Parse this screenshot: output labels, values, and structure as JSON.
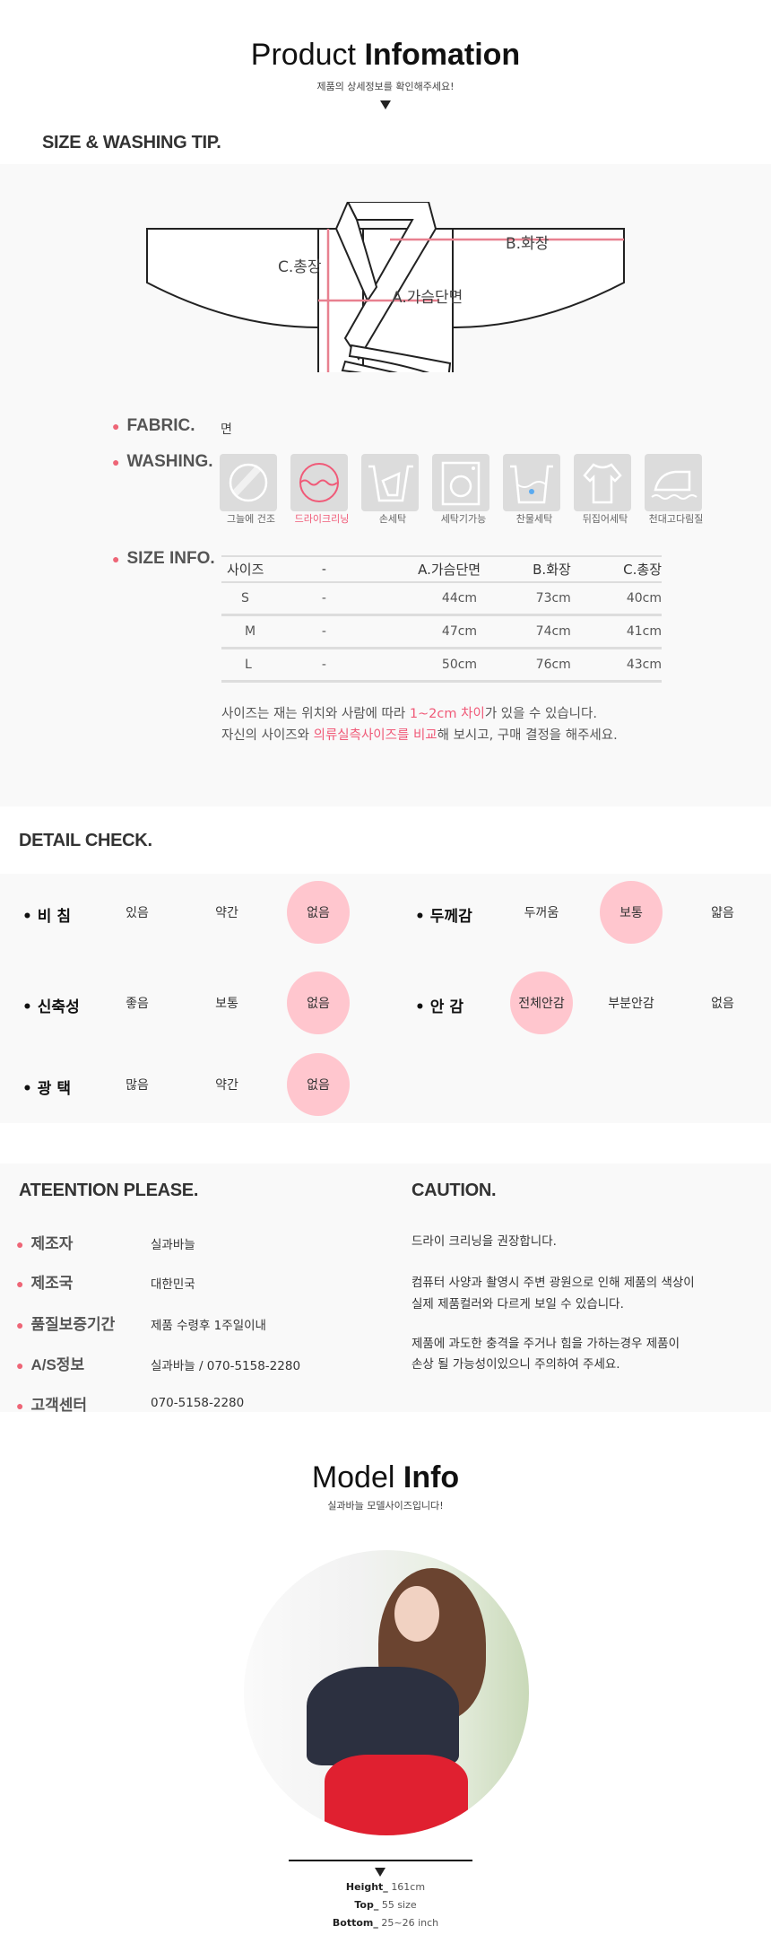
{
  "header": {
    "title_light": "Product",
    "title_bold": "Infomation",
    "subtitle": "제품의 상세정보를 확인해주세요!"
  },
  "size_tip": {
    "heading": "SIZE & WASHING TIP.",
    "diagram": {
      "a": "A.가슴단면",
      "b": "B.화장",
      "c": "C.총장"
    },
    "fabric_label": "FABRIC.",
    "fabric_value": "면",
    "washing_label": "WASHING.",
    "washing": [
      {
        "icon": "shade-dry-icon",
        "label": "그늘에 건조",
        "active": false
      },
      {
        "icon": "dry-clean-icon",
        "label": "드라이크리닝",
        "active": true
      },
      {
        "icon": "hand-wash-icon",
        "label": "손세탁",
        "active": false
      },
      {
        "icon": "washing-machine-icon",
        "label": "세탁기가능",
        "active": false
      },
      {
        "icon": "cold-wash-icon",
        "label": "찬물세탁",
        "active": false
      },
      {
        "icon": "inside-out-wash-icon",
        "label": "뒤집어세탁",
        "active": false
      },
      {
        "icon": "cloth-iron-icon",
        "label": "천대고다림질",
        "active": false
      }
    ],
    "size_label": "SIZE INFO.",
    "table": {
      "headers": [
        "사이즈",
        "-",
        "A.가슴단면",
        "B.화장",
        "C.총장"
      ],
      "rows": [
        [
          "S",
          "-",
          "44cm",
          "73cm",
          "40cm"
        ],
        [
          "M",
          "-",
          "47cm",
          "74cm",
          "41cm"
        ],
        [
          "L",
          "-",
          "50cm",
          "76cm",
          "43cm"
        ]
      ]
    },
    "note1": {
      "pre": "사이즈는 재는 위치와 사람에 따라 ",
      "hl": "1~2cm 차이",
      "post": "가 있을 수 있습니다."
    },
    "note2": {
      "pre": "자신의 사이즈와 ",
      "hl": "의류실측사이즈를 비교",
      "post": "해 보시고, 구매 결정을 해주세요."
    }
  },
  "detail": {
    "heading": "DETAIL CHECK.",
    "items": [
      {
        "label": "비 침",
        "options": [
          "있음",
          "약간",
          "없음"
        ],
        "selected": 2
      },
      {
        "label": "두께감",
        "options": [
          "두꺼움",
          "보통",
          "얇음"
        ],
        "selected": 1
      },
      {
        "label": "신축성",
        "options": [
          "좋음",
          "보통",
          "없음"
        ],
        "selected": 2
      },
      {
        "label": "안 감",
        "options": [
          "전체안감",
          "부분안감",
          "없음"
        ],
        "selected": 0
      },
      {
        "label": "광 택",
        "options": [
          "많음",
          "약간",
          "없음"
        ],
        "selected": 2
      }
    ]
  },
  "attention": {
    "heading": "ATEENTION PLEASE.",
    "rows": [
      {
        "label": "제조자",
        "value": "실과바늘"
      },
      {
        "label": "제조국",
        "value": "대한민국"
      },
      {
        "label": "품질보증기간",
        "value": "제품 수령후 1주일이내"
      },
      {
        "label": "A/S정보",
        "value": "실과바늘 / 070-5158-2280"
      },
      {
        "label": "고객센터",
        "value": "070-5158-2280"
      }
    ]
  },
  "caution": {
    "heading": "CAUTION.",
    "lines": [
      "드라이 크리닝을 권장합니다.",
      "컴퓨터 사양과 촬영시 주변 광원으로 인해 제품의 색상이",
      "실제 제품컬러와 다르게 보일 수 있습니다.",
      "제품에 과도한 충격을 주거나 힘을 가하는경우 제품이",
      "손상 될 가능성이있으니 주의하여 주세요."
    ]
  },
  "model": {
    "title_light": "Model",
    "title_bold": "Info",
    "subtitle": "실과바늘 모델사이즈입니다!",
    "stats": [
      {
        "k": "Height_",
        "v": "161cm"
      },
      {
        "k": "Top_",
        "v": "55 size"
      },
      {
        "k": "Bottom_",
        "v": "25~26 inch"
      }
    ]
  },
  "colors": {
    "accent": "#f05a78",
    "highlight_circle": "#ffc6ce",
    "panel": "#f9f9f9"
  }
}
